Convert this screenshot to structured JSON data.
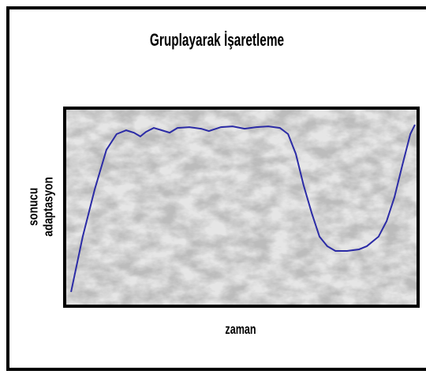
{
  "chart_data": {
    "type": "line",
    "title": "Gruplayarak İşaretleme",
    "xlabel": "zaman",
    "ylabel": [
      "sonucu",
      "adaptasyon"
    ],
    "xlim": [
      0,
      100
    ],
    "ylim": [
      0,
      100
    ],
    "x": [
      1.8,
      5.1,
      8.5,
      11.8,
      14.7,
      17.4,
      19.6,
      21.4,
      23.0,
      25.2,
      27.5,
      29.7,
      31.9,
      35.3,
      38.6,
      40.8,
      44.2,
      47.5,
      50.9,
      54.2,
      57.6,
      60.9,
      63.2,
      65.4,
      67.6,
      69.9,
      72.1,
      74.3,
      76.6,
      79.9,
      83.3,
      85.5,
      88.8,
      91.1,
      93.3,
      95.5,
      97.8,
      99.1
    ],
    "series": [
      {
        "color": "#2b2ba6",
        "values": [
          7.2,
          35.1,
          59.0,
          78.9,
          86.9,
          88.8,
          87.6,
          85.7,
          88.0,
          90.0,
          88.8,
          87.6,
          90.0,
          90.4,
          89.6,
          88.4,
          90.4,
          90.8,
          89.6,
          90.4,
          90.8,
          90.0,
          86.9,
          76.9,
          61.0,
          47.0,
          35.1,
          30.3,
          27.9,
          27.9,
          28.7,
          30.3,
          35.1,
          43.0,
          55.0,
          70.9,
          86.9,
          91.6
        ]
      }
    ]
  }
}
